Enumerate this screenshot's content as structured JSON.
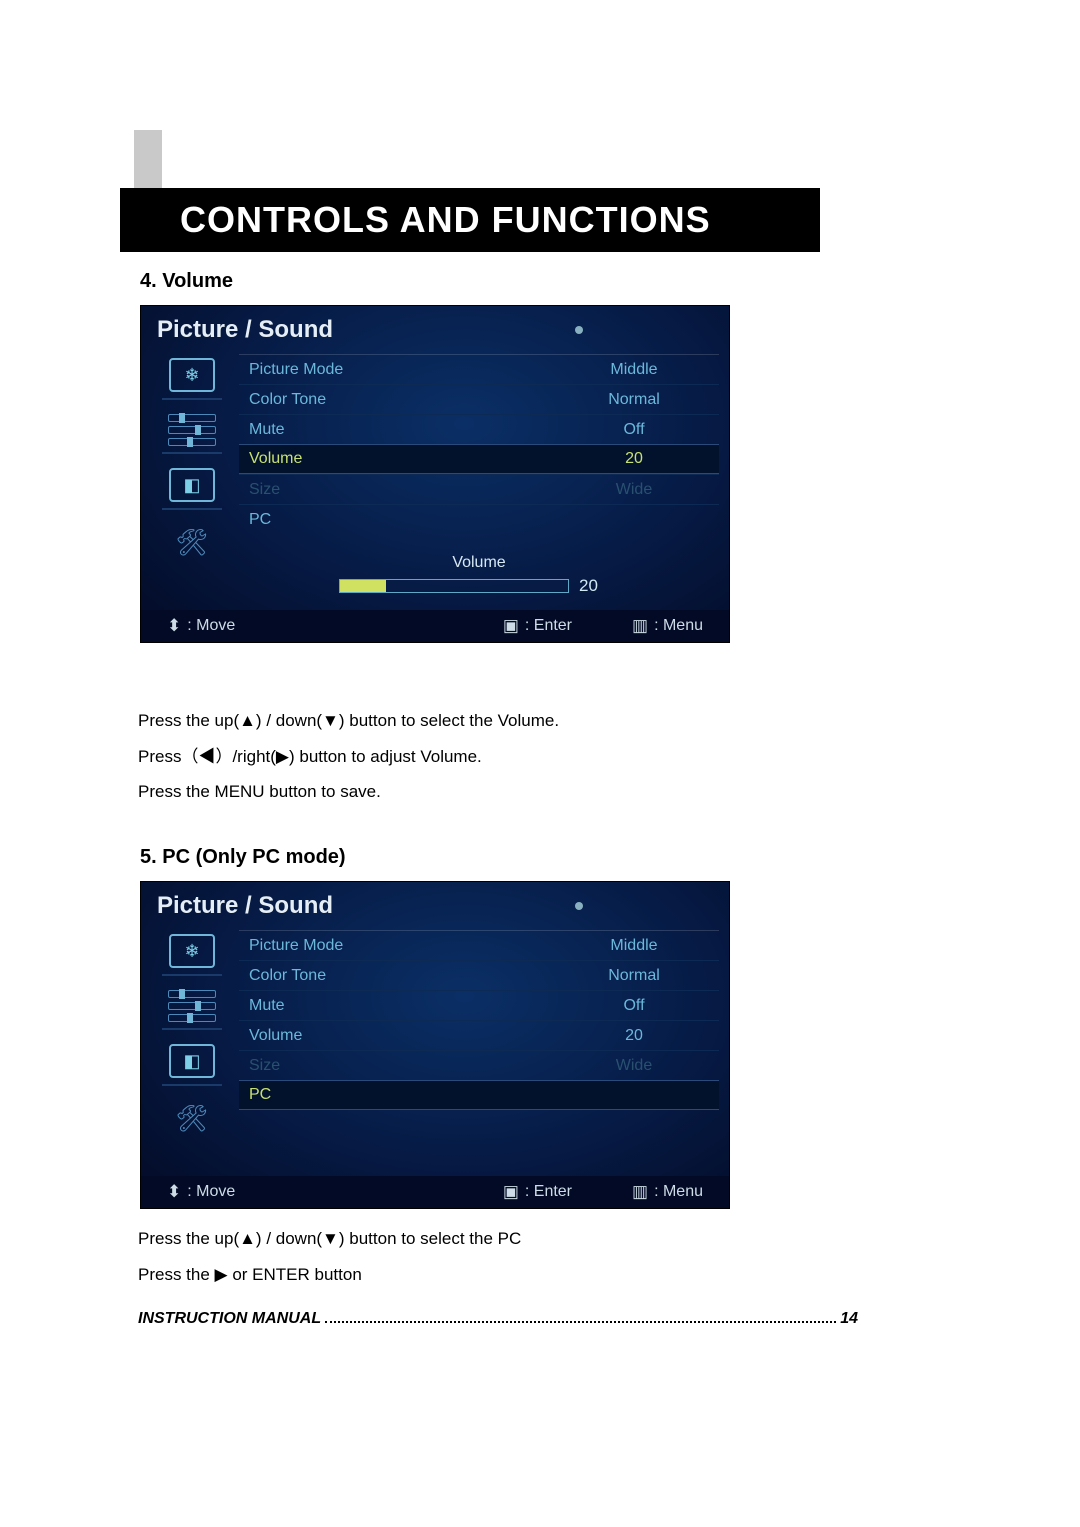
{
  "page": {
    "title": "CONTROLS AND FUNCTIONS",
    "footer_label": "INSTRUCTION MANUAL",
    "page_number": "14"
  },
  "sections": {
    "volume": {
      "heading": "4. Volume",
      "osd_title": "Picture / Sound",
      "rows": [
        {
          "label": "Picture Mode",
          "value": "Middle",
          "state": "normal"
        },
        {
          "label": "Color Tone",
          "value": "Normal",
          "state": "normal"
        },
        {
          "label": "Mute",
          "value": "Off",
          "state": "normal"
        },
        {
          "label": "Volume",
          "value": "20",
          "state": "selected"
        },
        {
          "label": "Size",
          "value": "Wide",
          "state": "disabled"
        },
        {
          "label": "PC",
          "value": "",
          "state": "normal"
        }
      ],
      "volume_slider": {
        "label": "Volume",
        "value": 20,
        "max": 100
      },
      "footer": {
        "move": ": Move",
        "enter": ": Enter",
        "menu": ": Menu"
      },
      "instructions": [
        "Press the up(▲) / down(▼) button to select the Volume.",
        "Press（◀）/right(▶) button to adjust Volume.",
        "Press the MENU button to save."
      ]
    },
    "pc": {
      "heading": "5. PC (Only PC mode)",
      "osd_title": "Picture / Sound",
      "rows": [
        {
          "label": "Picture Mode",
          "value": "Middle",
          "state": "normal"
        },
        {
          "label": "Color Tone",
          "value": "Normal",
          "state": "normal"
        },
        {
          "label": "Mute",
          "value": "Off",
          "state": "normal"
        },
        {
          "label": "Volume",
          "value": "20",
          "state": "normal"
        },
        {
          "label": "Size",
          "value": "Wide",
          "state": "disabled"
        },
        {
          "label": "PC",
          "value": "",
          "state": "selected"
        }
      ],
      "footer": {
        "move": ": Move",
        "enter": ": Enter",
        "menu": ": Menu"
      },
      "instructions": [
        "Press the up(▲) / down(▼) button to select the PC",
        "Press the  ▶  or ENTER button"
      ]
    }
  },
  "colors": {
    "osd_bg_center": "#0a2f66",
    "osd_bg_edge": "#030a25",
    "osd_text": "#7dcfe8",
    "osd_highlight": "#c7e070",
    "title_bar": "#000000",
    "vbar": "#c9c9c9"
  }
}
